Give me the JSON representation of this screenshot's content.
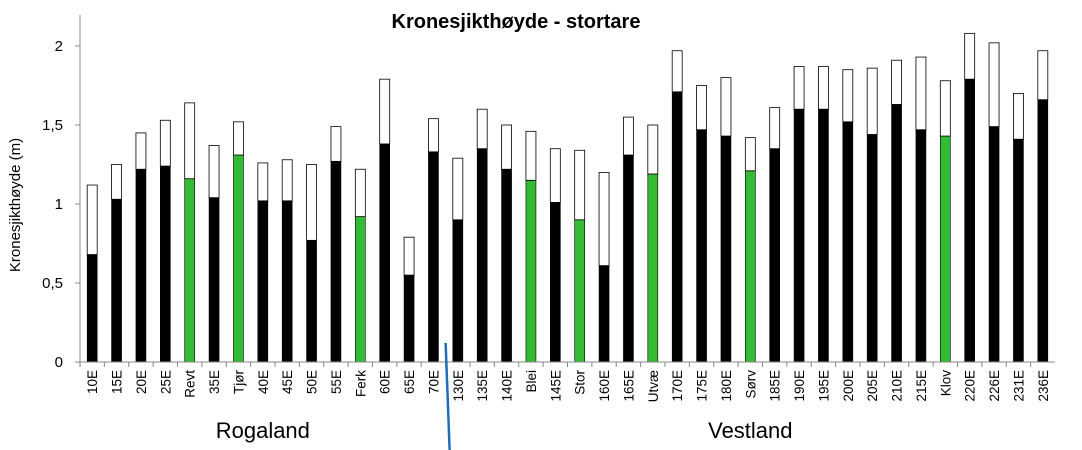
{
  "chart_data": {
    "type": "bar",
    "title": "Kronesjikthøyde - stortare",
    "ylabel": "Kronesjikthøyde  (m)",
    "xlabel": "",
    "ylim": [
      0,
      2.2
    ],
    "yticks": [
      "0",
      "0,5",
      "1",
      "1,5",
      "2"
    ],
    "yticks_values": [
      0,
      0.5,
      1,
      1.5,
      2
    ],
    "grid": false,
    "stacked": true,
    "categories": [
      "10E",
      "15E",
      "20E",
      "25E",
      "Revt",
      "35E",
      "Tjør",
      "40E",
      "45E",
      "50E",
      "55E",
      "Ferk",
      "60E",
      "65E",
      "70E",
      "130E",
      "135E",
      "140E",
      "Blei",
      "145E",
      "Stor",
      "160E",
      "165E",
      "Utvæ",
      "170E",
      "175E",
      "180E",
      "Sørv",
      "185E",
      "190E",
      "195E",
      "200E",
      "205E",
      "210E",
      "215E",
      "Klov",
      "220E",
      "226E",
      "231E",
      "236E"
    ],
    "series": [
      {
        "values": [
          0.68,
          1.03,
          1.22,
          1.24,
          1.16,
          1.04,
          1.31,
          1.02,
          1.02,
          0.77,
          1.27,
          0.92,
          1.38,
          0.55,
          1.33,
          0.9,
          1.35,
          1.22,
          1.15,
          1.01,
          0.9,
          0.61,
          1.31,
          1.19,
          1.71,
          1.47,
          1.43,
          1.21,
          1.35,
          1.6,
          1.6,
          1.52,
          1.44,
          1.63,
          1.47,
          1.43,
          1.79,
          1.49,
          1.41,
          1.66
        ],
        "highlight_color": "#33bb33",
        "color": "#000000"
      },
      {
        "values": [
          0.44,
          0.22,
          0.23,
          0.29,
          0.48,
          0.33,
          0.21,
          0.24,
          0.26,
          0.48,
          0.22,
          0.3,
          0.41,
          0.24,
          0.21,
          0.39,
          0.25,
          0.28,
          0.31,
          0.34,
          0.44,
          0.59,
          0.24,
          0.31,
          0.26,
          0.28,
          0.37,
          0.21,
          0.26,
          0.27,
          0.27,
          0.33,
          0.42,
          0.28,
          0.46,
          0.35,
          0.29,
          0.53,
          0.29,
          0.31
        ],
        "color": "#ffffff"
      }
    ],
    "highlighted_categories": [
      "Revt",
      "Tjør",
      "Ferk",
      "Blei",
      "Stor",
      "Utvæ",
      "Sørv",
      "Klov"
    ],
    "regions": [
      {
        "label": "Rogaland",
        "from": "10E",
        "to": "70E"
      },
      {
        "label": "Vestland",
        "from": "130E",
        "to": "236E"
      }
    ],
    "divider_color": "#1f6fb8"
  }
}
